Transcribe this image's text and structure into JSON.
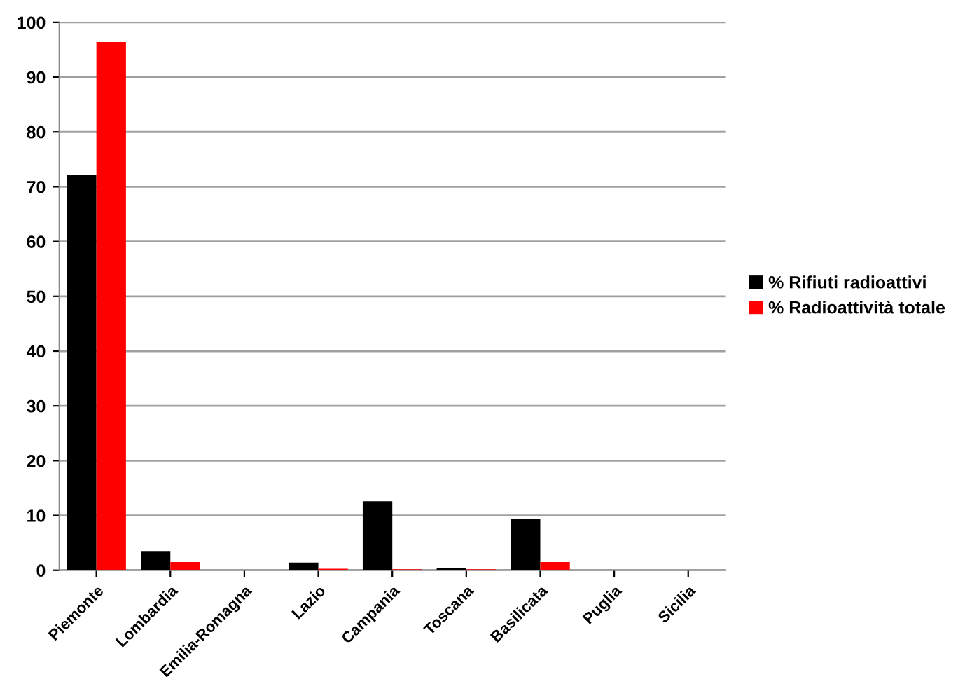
{
  "chart_data": {
    "type": "bar",
    "categories": [
      "Piemonte",
      "Lombardia",
      "Emilia-Romagna",
      "Lazio",
      "Campania",
      "Toscana",
      "Basilicata",
      "Puglia",
      "Sicilia"
    ],
    "series": [
      {
        "name": "% Rifiuti radioattivi",
        "color": "#000000",
        "values": [
          72.2,
          3.5,
          0,
          1.4,
          12.6,
          0.4,
          9.3,
          0,
          0
        ]
      },
      {
        "name": "% Radioattività totale",
        "color": "#ff0000",
        "values": [
          96.4,
          1.5,
          0,
          0.3,
          0.2,
          0.2,
          1.5,
          0,
          0
        ]
      }
    ],
    "ylim": [
      0,
      100
    ],
    "yticks": [
      0,
      10,
      20,
      30,
      40,
      50,
      60,
      70,
      80,
      90,
      100
    ],
    "grid": "y",
    "legend": "right"
  }
}
